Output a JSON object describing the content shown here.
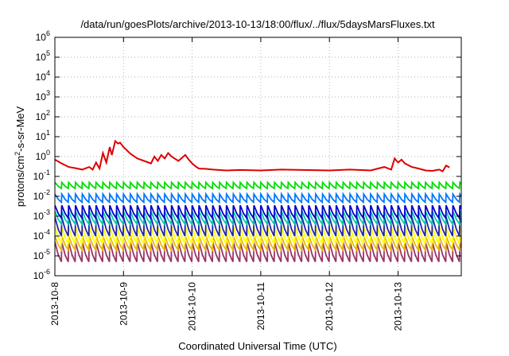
{
  "chart_data": {
    "type": "line",
    "title": "/data/run/goesPlots/archive/2013-10-13/18:00/flux/../flux/5daysMarsFluxes.txt",
    "xlabel": "Coordinated Universal Time (UTC)",
    "ylabel": "protons/cm²-s-sr-MeV",
    "yscale": "log",
    "ylim": [
      1e-06,
      1000000.0
    ],
    "xlim": [
      "2013-10-08 00:00",
      "2013-10-13 18:00"
    ],
    "x_ticks": [
      "2013-10-8",
      "2013-10-9",
      "2013-10-10",
      "2013-10-11",
      "2013-10-12",
      "2013-10-13"
    ],
    "y_ticks": [
      {
        "base": "10",
        "exp": "-6"
      },
      {
        "base": "10",
        "exp": "-5"
      },
      {
        "base": "10",
        "exp": "-4"
      },
      {
        "base": "10",
        "exp": "-3"
      },
      {
        "base": "10",
        "exp": "-2"
      },
      {
        "base": "10",
        "exp": "-1"
      },
      {
        "base": "10",
        "exp": "0"
      },
      {
        "base": "10",
        "exp": "1"
      },
      {
        "base": "10",
        "exp": "2"
      },
      {
        "base": "10",
        "exp": "3"
      },
      {
        "base": "10",
        "exp": "4"
      },
      {
        "base": "10",
        "exp": "5"
      },
      {
        "base": "10",
        "exp": "6"
      }
    ],
    "grid": true,
    "series": [
      {
        "color": "#dd0000",
        "x_days": [
          0,
          0.1,
          0.2,
          0.3,
          0.4,
          0.5,
          0.55,
          0.6,
          0.65,
          0.7,
          0.75,
          0.8,
          0.83,
          0.88,
          0.92,
          0.95,
          1.0,
          1.1,
          1.2,
          1.3,
          1.4,
          1.45,
          1.5,
          1.55,
          1.6,
          1.65,
          1.7,
          1.8,
          1.9,
          1.95,
          2.0,
          2.05,
          2.1,
          2.2,
          2.3,
          2.5,
          2.7,
          3.0,
          3.3,
          3.6,
          4.0,
          4.3,
          4.6,
          4.8,
          4.9,
          4.95,
          5.0,
          5.05,
          5.1,
          5.2,
          5.3,
          5.4,
          5.5,
          5.6,
          5.65,
          5.7,
          5.75
        ],
        "values": [
          0.7,
          0.45,
          0.3,
          0.26,
          0.22,
          0.3,
          0.22,
          0.5,
          0.25,
          1.5,
          0.5,
          3.0,
          1.2,
          6.0,
          4.5,
          5.0,
          3.0,
          1.4,
          0.8,
          0.6,
          0.45,
          1.0,
          0.6,
          1.2,
          0.8,
          1.5,
          1.0,
          0.6,
          1.2,
          0.7,
          0.45,
          0.32,
          0.25,
          0.24,
          0.22,
          0.2,
          0.21,
          0.2,
          0.22,
          0.21,
          0.2,
          0.22,
          0.2,
          0.3,
          0.22,
          0.8,
          0.5,
          0.7,
          0.45,
          0.3,
          0.25,
          0.2,
          0.19,
          0.22,
          0.18,
          0.35,
          0.28
        ]
      },
      {
        "color": "#00dd00",
        "spike": 0.05,
        "trough": 0.025
      },
      {
        "color": "#0077ff",
        "spike": 0.013,
        "trough": 0.005
      },
      {
        "color": "#0000cc",
        "spike": 0.0035,
        "trough": 0.0008
      },
      {
        "color": "#00ccaa",
        "spike": 0.0018,
        "trough": 0.0004
      },
      {
        "color": "#2222aa",
        "spike": 0.0009,
        "trough": 0.0001
      },
      {
        "color": "#ffff00",
        "spike": 0.0003,
        "trough": 4e-05
      },
      {
        "color": "#e6b800",
        "spike": 0.0001,
        "trough": 2e-05
      },
      {
        "color": "#993366",
        "spike": 5e-05,
        "trough": 5e-06
      }
    ]
  }
}
